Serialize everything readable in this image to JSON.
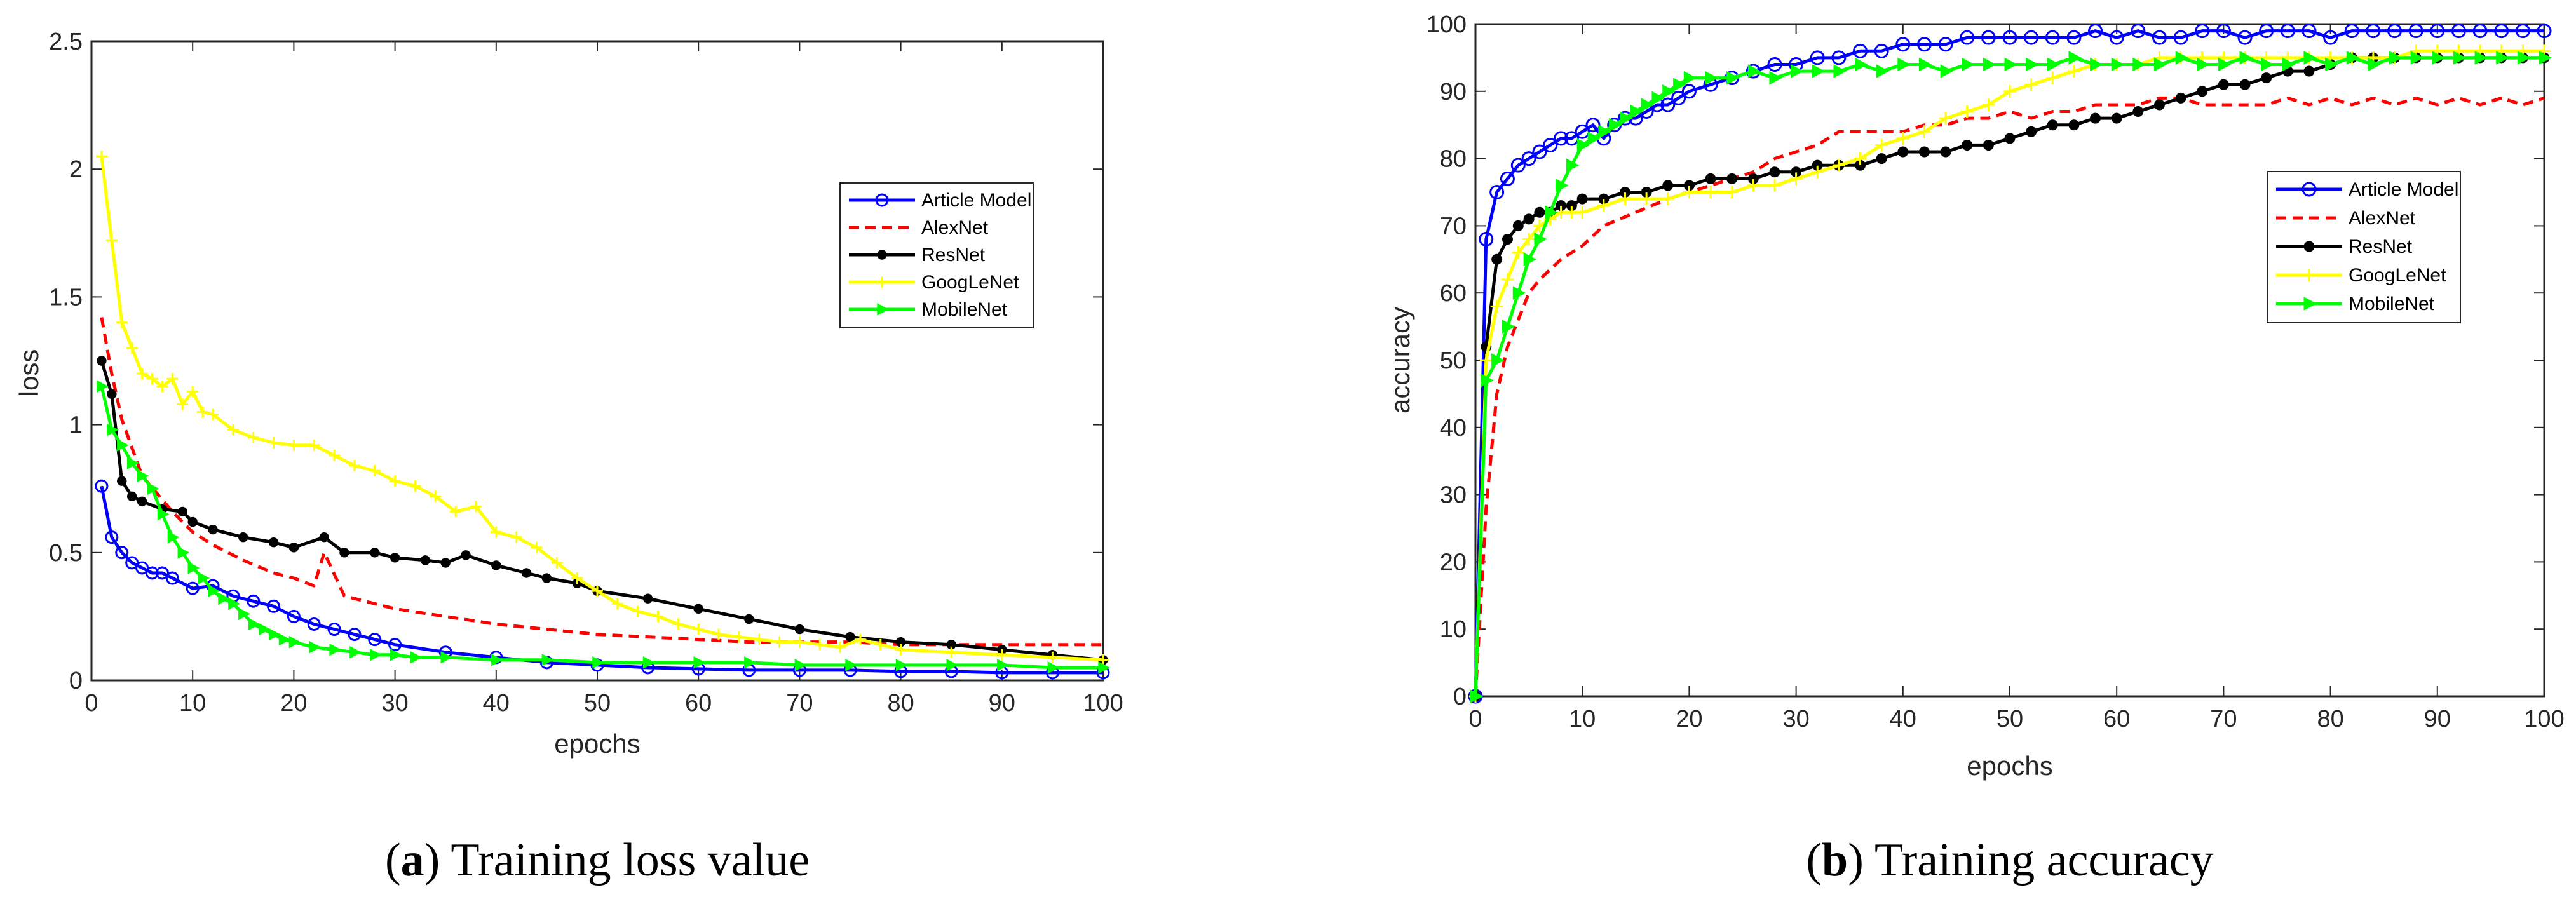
{
  "chart_data": [
    {
      "type": "line",
      "title": "",
      "xlabel": "epochs",
      "ylabel": "loss",
      "xlim": [
        0,
        100
      ],
      "ylim": [
        0,
        2.5
      ],
      "xticks": [
        "0",
        "10",
        "20",
        "30",
        "40",
        "50",
        "60",
        "70",
        "80",
        "90",
        "100"
      ],
      "yticks": [
        "0",
        "0.5",
        "1",
        "1.5",
        "2",
        "2.5"
      ],
      "caption": {
        "open": "(",
        "letter": "a",
        "close": ")",
        "text": " Training loss value"
      },
      "legend": [
        "Article Model",
        "AlexNet",
        "ResNet",
        "GoogLeNet",
        "MobileNet"
      ],
      "series": [
        {
          "name": "Article Model",
          "color": "#0000ff",
          "marker": "circle",
          "dash": "",
          "x": [
            1,
            2,
            3,
            4,
            5,
            6,
            7,
            8,
            10,
            12,
            14,
            16,
            18,
            20,
            22,
            24,
            26,
            28,
            30,
            35,
            40,
            45,
            50,
            55,
            60,
            65,
            70,
            75,
            80,
            85,
            90,
            95,
            100
          ],
          "y": [
            0.76,
            0.56,
            0.5,
            0.46,
            0.44,
            0.42,
            0.42,
            0.4,
            0.36,
            0.37,
            0.33,
            0.31,
            0.29,
            0.25,
            0.22,
            0.2,
            0.18,
            0.16,
            0.14,
            0.11,
            0.09,
            0.07,
            0.06,
            0.05,
            0.045,
            0.04,
            0.04,
            0.04,
            0.035,
            0.035,
            0.03,
            0.03,
            0.03
          ]
        },
        {
          "name": "AlexNet",
          "color": "#ff0000",
          "marker": "",
          "dash": "16,10",
          "x": [
            1,
            2,
            3,
            5,
            8,
            10,
            12,
            15,
            18,
            20,
            22,
            23,
            25,
            28,
            30,
            35,
            40,
            45,
            50,
            55,
            60,
            65,
            70,
            75,
            80,
            85,
            90,
            95,
            100
          ],
          "y": [
            1.42,
            1.2,
            1.02,
            0.8,
            0.66,
            0.58,
            0.53,
            0.47,
            0.42,
            0.4,
            0.37,
            0.5,
            0.33,
            0.3,
            0.28,
            0.25,
            0.22,
            0.2,
            0.18,
            0.17,
            0.16,
            0.15,
            0.15,
            0.15,
            0.14,
            0.14,
            0.14,
            0.14,
            0.14
          ]
        },
        {
          "name": "ResNet",
          "color": "#000000",
          "marker": "dot",
          "dash": "",
          "x": [
            1,
            2,
            3,
            4,
            5,
            7,
            9,
            10,
            12,
            15,
            18,
            20,
            23,
            25,
            28,
            30,
            33,
            35,
            37,
            40,
            43,
            45,
            48,
            50,
            55,
            60,
            65,
            70,
            75,
            80,
            85,
            90,
            95,
            100
          ],
          "y": [
            1.25,
            1.12,
            0.78,
            0.72,
            0.7,
            0.67,
            0.66,
            0.62,
            0.59,
            0.56,
            0.54,
            0.52,
            0.56,
            0.5,
            0.5,
            0.48,
            0.47,
            0.46,
            0.49,
            0.45,
            0.42,
            0.4,
            0.38,
            0.35,
            0.32,
            0.28,
            0.24,
            0.2,
            0.17,
            0.15,
            0.14,
            0.12,
            0.1,
            0.08
          ]
        },
        {
          "name": "GoogLeNet",
          "color": "#ffff00",
          "marker": "plus",
          "dash": "",
          "x": [
            1,
            2,
            3,
            4,
            5,
            6,
            7,
            8,
            9,
            10,
            11,
            12,
            14,
            16,
            18,
            20,
            22,
            24,
            26,
            28,
            30,
            32,
            34,
            36,
            38,
            40,
            42,
            44,
            46,
            48,
            50,
            52,
            54,
            56,
            58,
            60,
            62,
            64,
            66,
            68,
            70,
            72,
            74,
            76,
            78,
            80,
            85,
            90,
            95,
            100
          ],
          "y": [
            2.05,
            1.72,
            1.4,
            1.3,
            1.2,
            1.18,
            1.15,
            1.18,
            1.08,
            1.13,
            1.05,
            1.04,
            0.98,
            0.95,
            0.93,
            0.92,
            0.92,
            0.88,
            0.84,
            0.82,
            0.78,
            0.76,
            0.72,
            0.66,
            0.68,
            0.58,
            0.56,
            0.52,
            0.46,
            0.4,
            0.35,
            0.3,
            0.27,
            0.25,
            0.22,
            0.2,
            0.18,
            0.17,
            0.16,
            0.15,
            0.15,
            0.14,
            0.13,
            0.16,
            0.14,
            0.12,
            0.11,
            0.1,
            0.09,
            0.08
          ]
        },
        {
          "name": "MobileNet",
          "color": "#00ff00",
          "marker": "triangle",
          "dash": "",
          "x": [
            1,
            2,
            3,
            4,
            5,
            6,
            7,
            8,
            9,
            10,
            11,
            12,
            13,
            14,
            15,
            16,
            17,
            18,
            19,
            20,
            22,
            24,
            26,
            28,
            30,
            32,
            35,
            40,
            45,
            50,
            55,
            60,
            65,
            70,
            75,
            80,
            85,
            90,
            95,
            100
          ],
          "y": [
            1.15,
            0.98,
            0.92,
            0.85,
            0.8,
            0.75,
            0.65,
            0.56,
            0.5,
            0.44,
            0.4,
            0.35,
            0.32,
            0.3,
            0.26,
            0.22,
            0.2,
            0.18,
            0.16,
            0.15,
            0.13,
            0.12,
            0.11,
            0.1,
            0.1,
            0.09,
            0.09,
            0.08,
            0.08,
            0.07,
            0.07,
            0.07,
            0.07,
            0.06,
            0.06,
            0.06,
            0.06,
            0.06,
            0.05,
            0.05
          ]
        }
      ]
    },
    {
      "type": "line",
      "title": "",
      "xlabel": "epochs",
      "ylabel": "accuracy",
      "xlim": [
        0,
        100
      ],
      "ylim": [
        0,
        100
      ],
      "xticks": [
        "0",
        "10",
        "20",
        "30",
        "40",
        "50",
        "60",
        "70",
        "80",
        "90",
        "100"
      ],
      "yticks": [
        "0",
        "10",
        "20",
        "30",
        "40",
        "50",
        "60",
        "70",
        "80",
        "90",
        "100"
      ],
      "caption": {
        "open": "(",
        "letter": "b",
        "close": ")",
        "text": " Training accuracy"
      },
      "legend": [
        "Article Model",
        "AlexNet",
        "ResNet",
        "GoogLeNet",
        "MobileNet"
      ],
      "series": [
        {
          "name": "Article Model",
          "color": "#0000ff",
          "marker": "circle",
          "dash": "",
          "x": [
            0,
            1,
            2,
            3,
            4,
            5,
            6,
            7,
            8,
            9,
            10,
            11,
            12,
            13,
            14,
            15,
            16,
            17,
            18,
            19,
            20,
            22,
            24,
            26,
            28,
            30,
            32,
            34,
            36,
            38,
            40,
            42,
            44,
            46,
            48,
            50,
            52,
            54,
            56,
            58,
            60,
            62,
            64,
            66,
            68,
            70,
            72,
            74,
            76,
            78,
            80,
            82,
            84,
            86,
            88,
            90,
            92,
            94,
            96,
            98,
            100
          ],
          "y": [
            0,
            68,
            75,
            77,
            79,
            80,
            81,
            82,
            83,
            83,
            84,
            85,
            83,
            85,
            86,
            86,
            87,
            88,
            88,
            89,
            90,
            91,
            92,
            93,
            94,
            94,
            95,
            95,
            96,
            96,
            97,
            97,
            97,
            98,
            98,
            98,
            98,
            98,
            98,
            99,
            98,
            99,
            98,
            98,
            99,
            99,
            98,
            99,
            99,
            99,
            98,
            99,
            99,
            99,
            99,
            99,
            99,
            99,
            99,
            99,
            99
          ]
        },
        {
          "name": "AlexNet",
          "color": "#ff0000",
          "marker": "",
          "dash": "16,10",
          "x": [
            0,
            1,
            2,
            3,
            4,
            5,
            6,
            8,
            10,
            12,
            15,
            18,
            20,
            22,
            24,
            26,
            28,
            30,
            32,
            34,
            36,
            38,
            40,
            42,
            44,
            46,
            48,
            50,
            52,
            54,
            56,
            58,
            60,
            62,
            64,
            66,
            68,
            70,
            72,
            74,
            76,
            78,
            80,
            82,
            84,
            86,
            88,
            90,
            92,
            94,
            96,
            98,
            100
          ],
          "y": [
            0,
            28,
            45,
            52,
            56,
            60,
            62,
            65,
            67,
            70,
            72,
            74,
            75,
            76,
            77,
            78,
            80,
            81,
            82,
            84,
            84,
            84,
            84,
            85,
            85,
            86,
            86,
            87,
            86,
            87,
            87,
            88,
            88,
            88,
            89,
            89,
            88,
            88,
            88,
            88,
            89,
            88,
            89,
            88,
            89,
            88,
            89,
            88,
            89,
            88,
            89,
            88,
            89
          ]
        },
        {
          "name": "ResNet",
          "color": "#000000",
          "marker": "dot",
          "dash": "",
          "x": [
            0,
            1,
            2,
            3,
            4,
            5,
            6,
            7,
            8,
            9,
            10,
            12,
            14,
            16,
            18,
            20,
            22,
            24,
            26,
            28,
            30,
            32,
            34,
            36,
            38,
            40,
            42,
            44,
            46,
            48,
            50,
            52,
            54,
            56,
            58,
            60,
            62,
            64,
            66,
            68,
            70,
            72,
            74,
            76,
            78,
            80,
            82,
            84,
            86,
            88,
            90,
            92,
            94,
            96,
            98,
            100
          ],
          "y": [
            0,
            52,
            65,
            68,
            70,
            71,
            72,
            72,
            73,
            73,
            74,
            74,
            75,
            75,
            76,
            76,
            77,
            77,
            77,
            78,
            78,
            79,
            79,
            79,
            80,
            81,
            81,
            81,
            82,
            82,
            83,
            84,
            85,
            85,
            86,
            86,
            87,
            88,
            89,
            90,
            91,
            91,
            92,
            93,
            93,
            94,
            95,
            95,
            95,
            95,
            95,
            95,
            95,
            95,
            95,
            95
          ]
        },
        {
          "name": "GoogLeNet",
          "color": "#ffff00",
          "marker": "plus",
          "dash": "",
          "x": [
            0,
            1,
            2,
            3,
            4,
            5,
            6,
            7,
            8,
            9,
            10,
            12,
            14,
            16,
            18,
            20,
            22,
            24,
            26,
            28,
            30,
            32,
            34,
            36,
            38,
            40,
            42,
            44,
            46,
            48,
            50,
            52,
            54,
            56,
            58,
            60,
            62,
            64,
            66,
            68,
            70,
            72,
            74,
            76,
            78,
            80,
            82,
            84,
            86,
            88,
            90,
            92,
            94,
            96,
            98,
            100
          ],
          "y": [
            0,
            50,
            58,
            62,
            66,
            68,
            70,
            71,
            72,
            72,
            72,
            73,
            74,
            74,
            74,
            75,
            75,
            75,
            76,
            76,
            77,
            78,
            79,
            80,
            82,
            83,
            84,
            86,
            87,
            88,
            90,
            91,
            92,
            93,
            94,
            94,
            94,
            95,
            95,
            95,
            95,
            95,
            95,
            95,
            95,
            95,
            95,
            95,
            95,
            96,
            96,
            96,
            96,
            96,
            96,
            96
          ]
        },
        {
          "name": "MobileNet",
          "color": "#00ff00",
          "marker": "triangle",
          "dash": "",
          "x": [
            0,
            1,
            2,
            3,
            4,
            5,
            6,
            7,
            8,
            9,
            10,
            11,
            12,
            13,
            14,
            15,
            16,
            17,
            18,
            19,
            20,
            22,
            24,
            26,
            28,
            30,
            32,
            34,
            36,
            38,
            40,
            42,
            44,
            46,
            48,
            50,
            52,
            54,
            56,
            58,
            60,
            62,
            64,
            66,
            68,
            70,
            72,
            74,
            76,
            78,
            80,
            82,
            84,
            86,
            88,
            90,
            92,
            94,
            96,
            98,
            100
          ],
          "y": [
            0,
            47,
            50,
            55,
            60,
            65,
            68,
            72,
            76,
            79,
            82,
            83,
            84,
            85,
            86,
            87,
            88,
            89,
            90,
            91,
            92,
            92,
            92,
            93,
            92,
            93,
            93,
            93,
            94,
            93,
            94,
            94,
            93,
            94,
            94,
            94,
            94,
            94,
            95,
            94,
            94,
            94,
            94,
            95,
            94,
            94,
            95,
            94,
            94,
            95,
            94,
            95,
            94,
            95,
            95,
            95,
            95,
            95,
            95,
            95,
            95
          ]
        }
      ]
    }
  ]
}
